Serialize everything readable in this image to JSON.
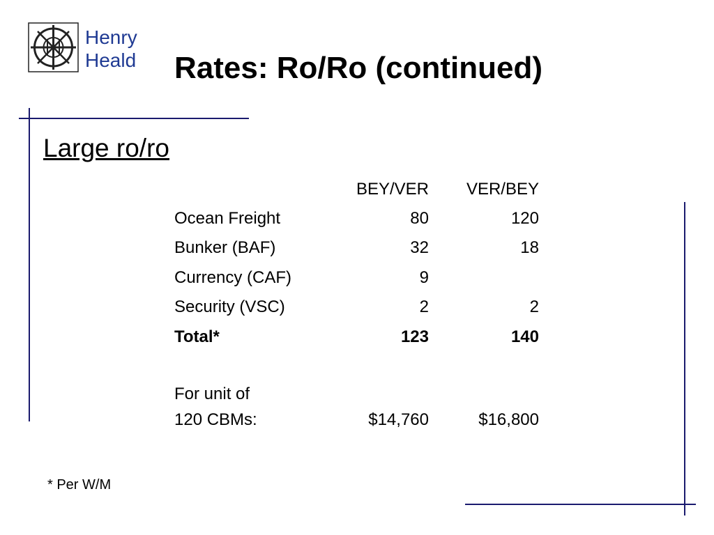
{
  "logo": {
    "lines": [
      "Henry",
      "Heald"
    ]
  },
  "title": "Rates: Ro/Ro (continued)",
  "subtitle": "Large ro/ro",
  "table": {
    "columns": [
      "BEY/VER",
      "VER/BEY"
    ],
    "rows": [
      {
        "label": "Ocean Freight",
        "values": [
          80,
          120
        ]
      },
      {
        "label": "Bunker (BAF)",
        "values": [
          32,
          18
        ]
      },
      {
        "label": "Currency (CAF)",
        "values": [
          9,
          null
        ]
      },
      {
        "label": "Security (VSC)",
        "values": [
          2,
          2
        ]
      }
    ],
    "total": {
      "label": "Total*",
      "values": [
        123,
        140
      ]
    },
    "unit": {
      "label_lines": [
        "For unit of",
        "120 CBMs:"
      ],
      "values": [
        "$14,760",
        "$16,800"
      ]
    }
  },
  "footnote": "* Per W/M"
}
